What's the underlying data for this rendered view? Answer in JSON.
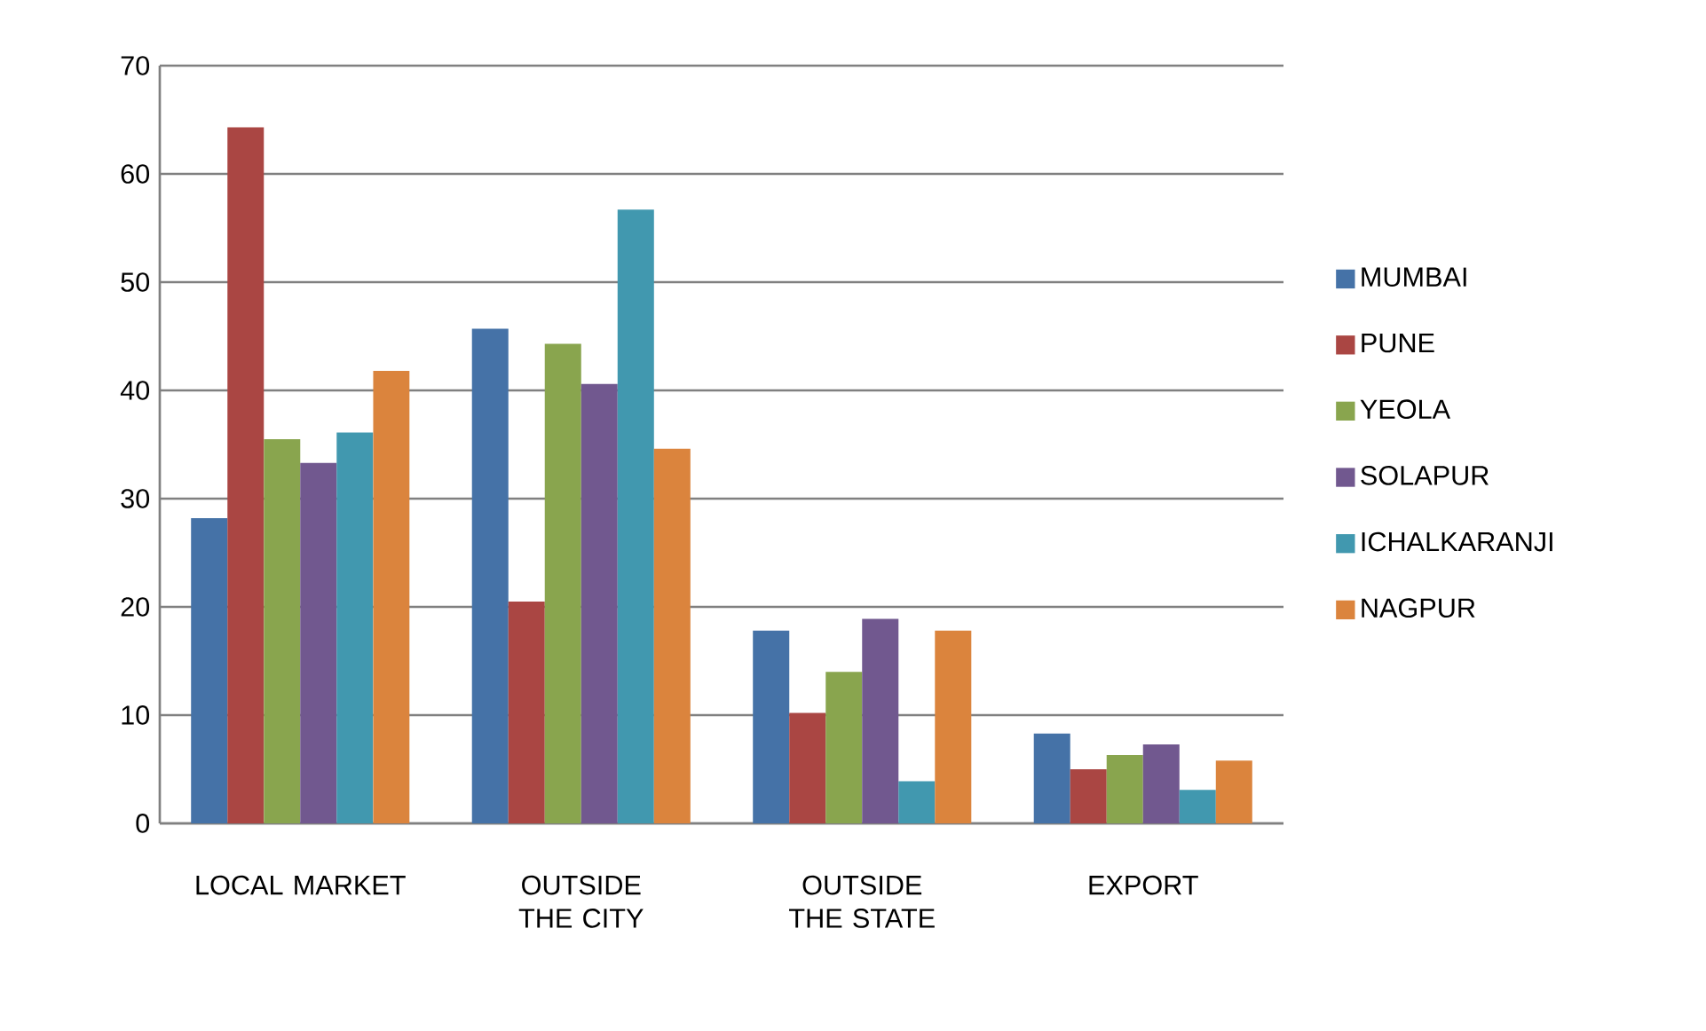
{
  "chart_data": {
    "type": "bar",
    "categories": [
      "LOCAL MARKET",
      "OUTSIDE THE CITY",
      "OUTSIDE THE STATE",
      "EXPORT"
    ],
    "series": [
      {
        "name": "MUMBAI",
        "color": "#4572a7",
        "values": [
          28.2,
          45.7,
          17.8,
          8.3
        ]
      },
      {
        "name": "PUNE",
        "color": "#aa4643",
        "values": [
          64.3,
          20.5,
          10.2,
          5.0
        ]
      },
      {
        "name": "YEOLA",
        "color": "#89a54e",
        "values": [
          35.5,
          44.3,
          14.0,
          6.3
        ]
      },
      {
        "name": "SOLAPUR",
        "color": "#71588f",
        "values": [
          33.3,
          40.6,
          18.9,
          7.3
        ]
      },
      {
        "name": "ICHALKARANJI",
        "color": "#4198af",
        "values": [
          36.1,
          56.7,
          3.9,
          3.1
        ]
      },
      {
        "name": "NAGPUR",
        "color": "#db843d",
        "values": [
          41.8,
          34.6,
          17.8,
          5.8
        ]
      }
    ],
    "ylim": [
      0,
      70
    ],
    "yticks": [
      0,
      10,
      20,
      30,
      40,
      50,
      60,
      70
    ],
    "grid": "y",
    "legend": "right"
  }
}
